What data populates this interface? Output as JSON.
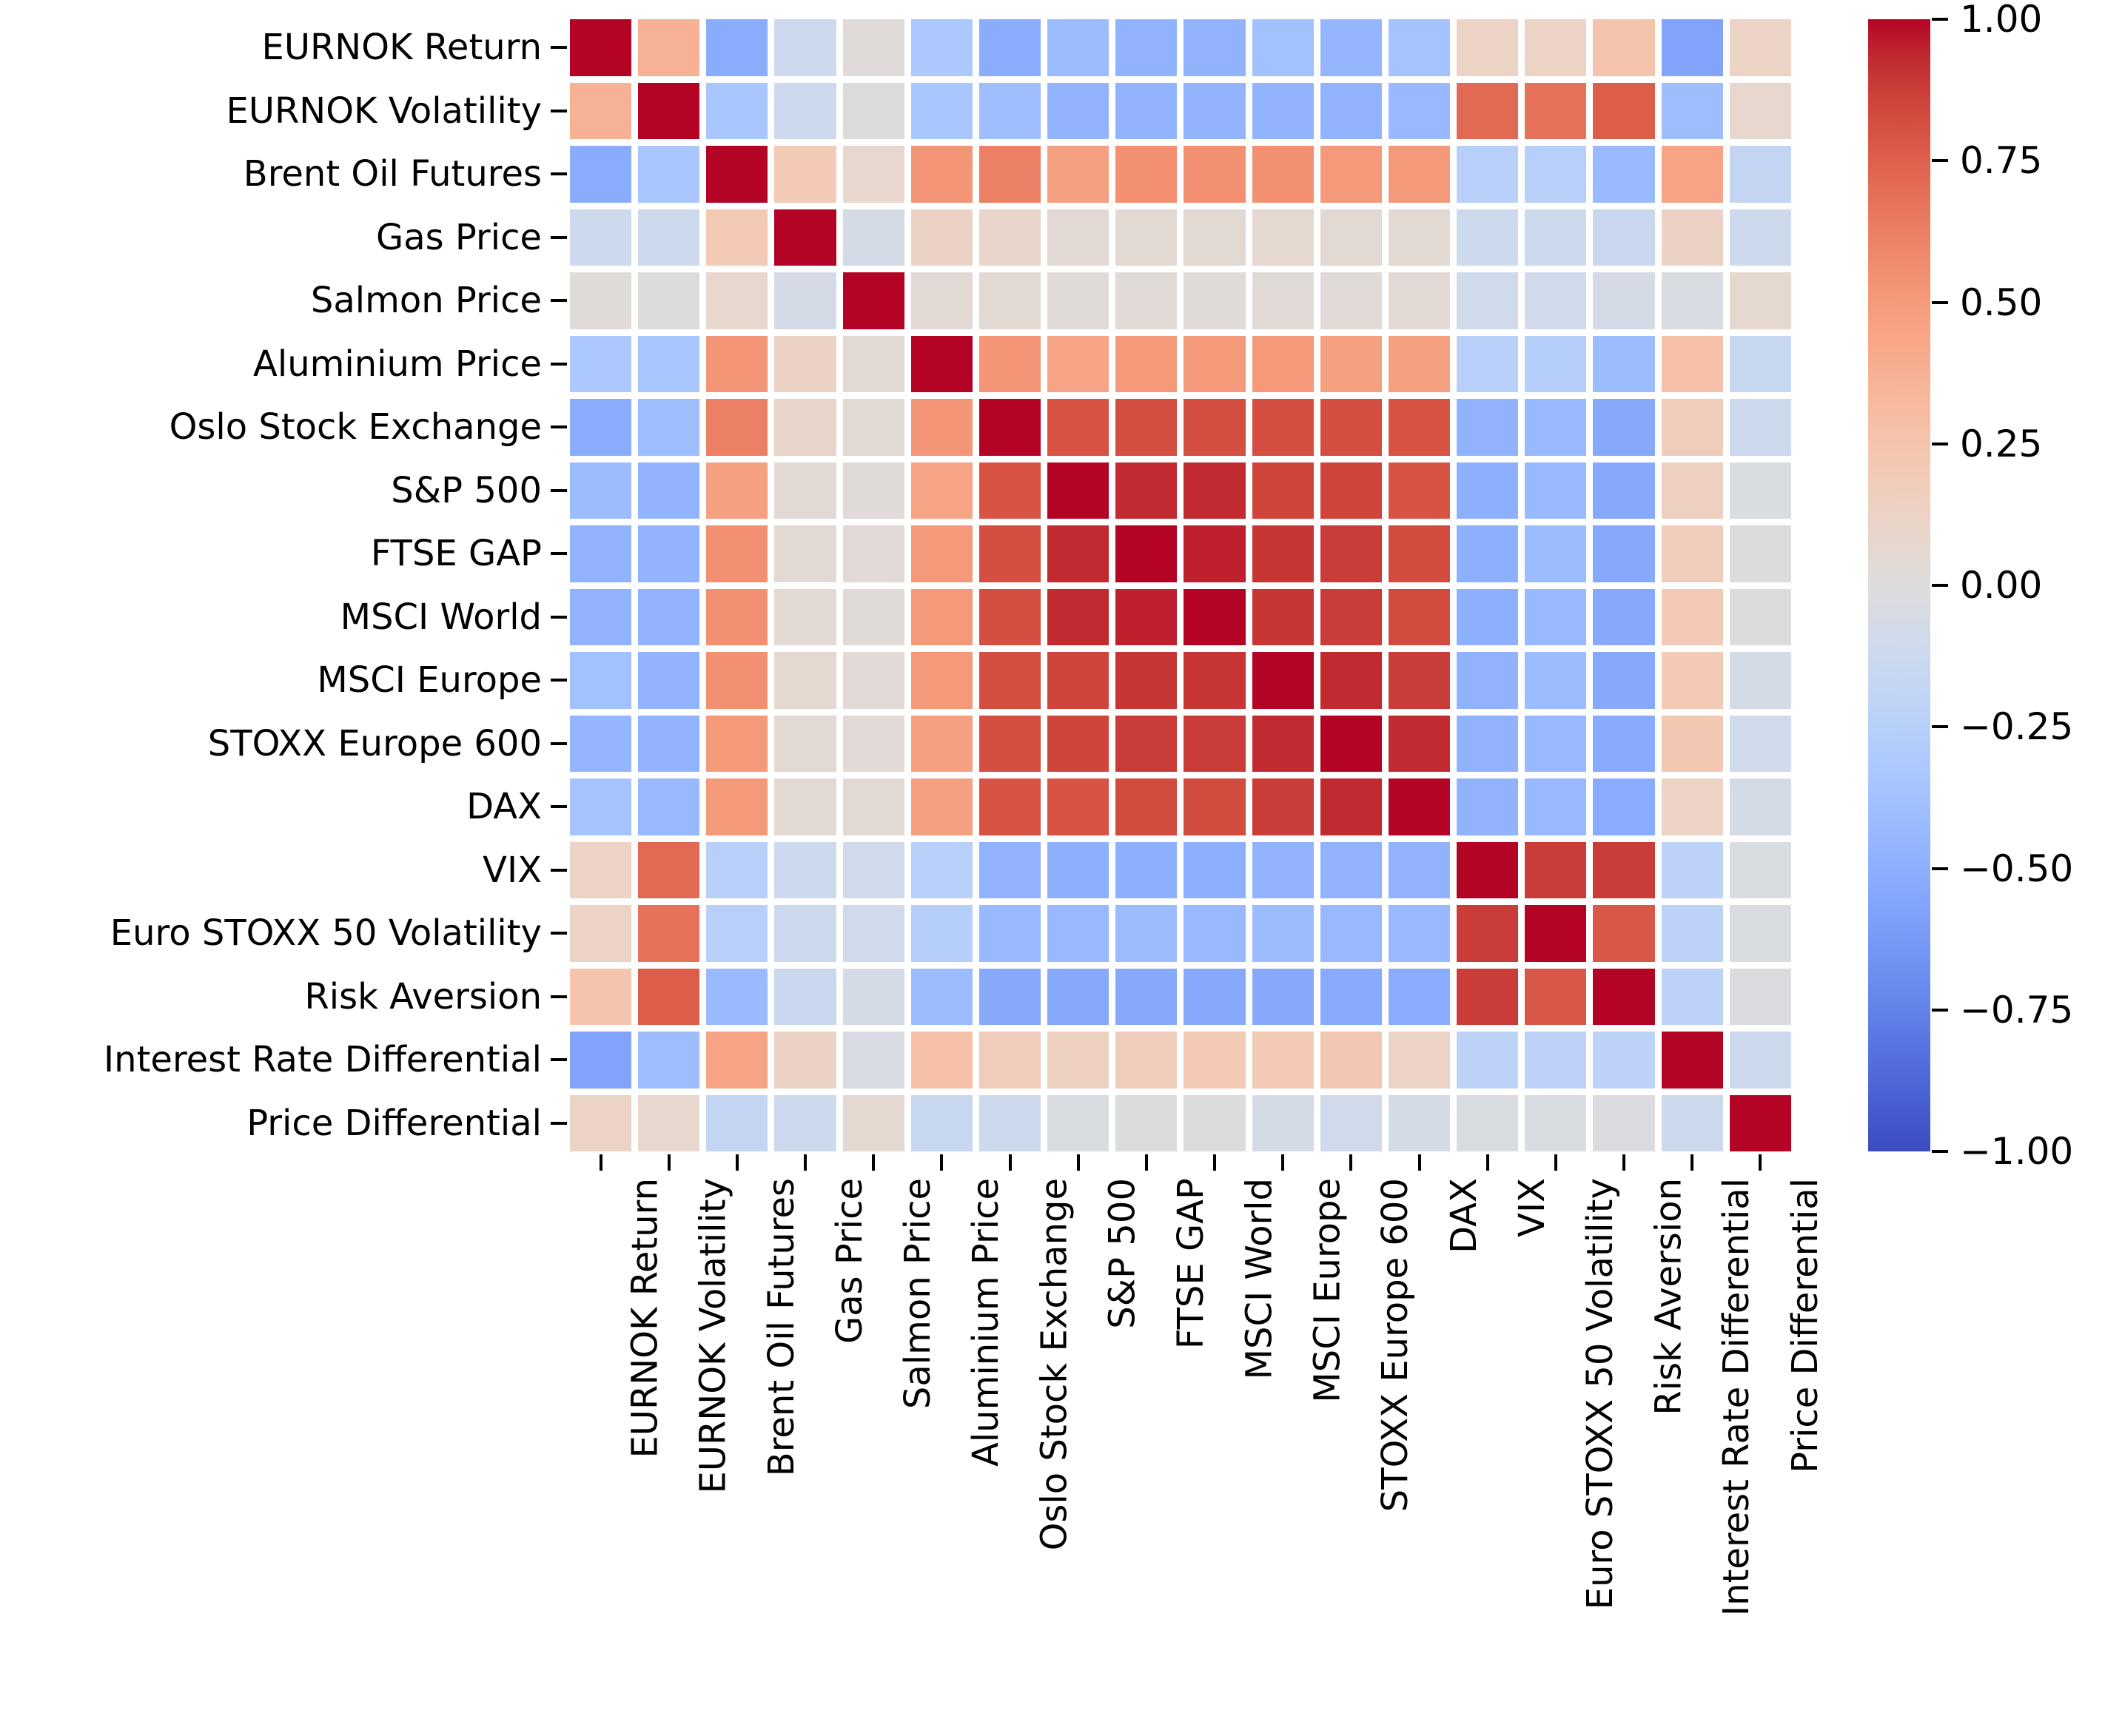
{
  "figure": {
    "background_color": "#ffffff",
    "label_color": "#000000"
  },
  "chart_data": {
    "type": "heatmap",
    "title": "",
    "xlabel": "",
    "ylabel": "",
    "variables": [
      "EURNOK Return",
      "EURNOK Volatility",
      "Brent Oil Futures",
      "Gas Price",
      "Salmon Price",
      "Aluminium Price",
      "Oslo Stock Exchange",
      "S&P 500",
      "FTSE GAP",
      "MSCI World",
      "MSCI Europe",
      "STOXX Europe 600",
      "DAX",
      "VIX",
      "Euro STOXX 50 Volatility",
      "Risk Aversion",
      "Interest Rate Differential",
      "Price Differential"
    ],
    "matrix": [
      [
        1.0,
        0.37,
        -0.52,
        -0.12,
        0.02,
        -0.32,
        -0.52,
        -0.42,
        -0.48,
        -0.48,
        -0.38,
        -0.46,
        -0.37,
        0.12,
        0.12,
        0.25,
        -0.57,
        0.12
      ],
      [
        0.37,
        1.0,
        -0.34,
        -0.12,
        0.0,
        -0.34,
        -0.4,
        -0.47,
        -0.47,
        -0.47,
        -0.47,
        -0.47,
        -0.44,
        0.71,
        0.68,
        0.76,
        -0.41,
        0.08
      ],
      [
        -0.52,
        -0.34,
        1.0,
        0.2,
        0.08,
        0.52,
        0.62,
        0.47,
        0.55,
        0.55,
        0.55,
        0.5,
        0.5,
        -0.25,
        -0.25,
        -0.43,
        0.45,
        -0.18
      ],
      [
        -0.12,
        -0.12,
        0.2,
        1.0,
        -0.06,
        0.13,
        0.1,
        0.04,
        0.05,
        0.05,
        0.06,
        0.05,
        0.05,
        -0.12,
        -0.12,
        -0.14,
        0.13,
        -0.12
      ],
      [
        0.02,
        0.0,
        0.08,
        -0.06,
        1.0,
        0.04,
        0.05,
        0.02,
        0.03,
        0.02,
        0.03,
        0.03,
        0.04,
        -0.1,
        -0.1,
        -0.07,
        -0.04,
        0.06
      ],
      [
        -0.32,
        -0.34,
        0.52,
        0.13,
        0.04,
        1.0,
        0.52,
        0.45,
        0.5,
        0.5,
        0.5,
        0.47,
        0.47,
        -0.25,
        -0.27,
        -0.42,
        0.27,
        -0.15
      ],
      [
        -0.52,
        -0.4,
        0.62,
        0.1,
        0.05,
        0.52,
        1.0,
        0.8,
        0.82,
        0.82,
        0.82,
        0.82,
        0.8,
        -0.48,
        -0.44,
        -0.54,
        0.18,
        -0.12
      ],
      [
        -0.42,
        -0.47,
        0.47,
        0.04,
        0.02,
        0.45,
        0.8,
        1.0,
        0.93,
        0.93,
        0.85,
        0.85,
        0.8,
        -0.5,
        -0.44,
        -0.54,
        0.15,
        -0.03
      ],
      [
        -0.48,
        -0.47,
        0.55,
        0.05,
        0.03,
        0.5,
        0.82,
        0.93,
        1.0,
        0.95,
        0.9,
        0.88,
        0.83,
        -0.5,
        -0.42,
        -0.54,
        0.18,
        0.0
      ],
      [
        -0.48,
        -0.47,
        0.55,
        0.05,
        0.02,
        0.5,
        0.82,
        0.93,
        0.95,
        1.0,
        0.9,
        0.88,
        0.83,
        -0.5,
        -0.44,
        -0.54,
        0.2,
        0.0
      ],
      [
        -0.38,
        -0.47,
        0.55,
        0.06,
        0.03,
        0.5,
        0.82,
        0.85,
        0.9,
        0.9,
        1.0,
        0.93,
        0.88,
        -0.48,
        -0.42,
        -0.54,
        0.2,
        -0.06
      ],
      [
        -0.46,
        -0.47,
        0.5,
        0.05,
        0.03,
        0.47,
        0.82,
        0.85,
        0.88,
        0.88,
        0.93,
        1.0,
        0.93,
        -0.48,
        -0.44,
        -0.53,
        0.22,
        -0.09
      ],
      [
        -0.37,
        -0.44,
        0.5,
        0.05,
        0.04,
        0.47,
        0.8,
        0.8,
        0.83,
        0.83,
        0.88,
        0.93,
        1.0,
        -0.48,
        -0.44,
        -0.52,
        0.12,
        -0.07
      ],
      [
        0.12,
        0.71,
        -0.25,
        -0.12,
        -0.1,
        -0.25,
        -0.48,
        -0.5,
        -0.5,
        -0.5,
        -0.48,
        -0.48,
        -0.48,
        1.0,
        0.88,
        0.88,
        -0.22,
        -0.03
      ],
      [
        0.12,
        0.68,
        -0.25,
        -0.12,
        -0.1,
        -0.27,
        -0.44,
        -0.44,
        -0.42,
        -0.44,
        -0.42,
        -0.44,
        -0.44,
        0.88,
        1.0,
        0.78,
        -0.22,
        -0.03
      ],
      [
        0.25,
        0.76,
        -0.43,
        -0.14,
        -0.07,
        -0.42,
        -0.54,
        -0.54,
        -0.54,
        -0.54,
        -0.54,
        -0.53,
        -0.52,
        0.88,
        0.78,
        1.0,
        -0.22,
        -0.02
      ],
      [
        -0.57,
        -0.41,
        0.45,
        0.13,
        -0.04,
        0.27,
        0.18,
        0.15,
        0.18,
        0.2,
        0.2,
        0.22,
        0.12,
        -0.22,
        -0.22,
        -0.22,
        1.0,
        -0.12
      ],
      [
        0.12,
        0.08,
        -0.18,
        -0.12,
        0.06,
        -0.15,
        -0.12,
        -0.03,
        0.0,
        0.0,
        -0.06,
        -0.09,
        -0.07,
        -0.03,
        -0.03,
        -0.02,
        -0.12,
        1.0
      ]
    ],
    "vmin": -1,
    "vmax": 1,
    "colormap": "coolwarm",
    "colormap_anchors": [
      "#3b4cc0",
      "#445acc",
      "#4d68d7",
      "#5775e1",
      "#6282ea",
      "#6c8ff1",
      "#7799f6",
      "#82a5fb",
      "#8db0fe",
      "#98b9ff",
      "#a3c2ff",
      "#aec9fd",
      "#b8d0f9",
      "#c2d5f4",
      "#ccd9ee",
      "#d5dbe6",
      "#dddcdc",
      "#e5d8d1",
      "#ecd3c5",
      "#f1ccb8",
      "#f5c4ac",
      "#f7bb9f",
      "#f7b093",
      "#f7a687",
      "#f49a7b",
      "#f18d6f",
      "#ec7f63",
      "#e57058",
      "#de604d",
      "#d55042",
      "#cb3e38",
      "#c0282f",
      "#b40426"
    ],
    "cell_gap_color": "#ffffff",
    "grid_on": false,
    "x_tick_rotation": 90,
    "colorbar": {
      "position": "right",
      "ticks": [
        {
          "value": 1.0,
          "label": "1.00"
        },
        {
          "value": 0.75,
          "label": "0.75"
        },
        {
          "value": 0.5,
          "label": "0.50"
        },
        {
          "value": 0.25,
          "label": "0.25"
        },
        {
          "value": 0.0,
          "label": "0.00"
        },
        {
          "value": -0.25,
          "label": "−0.25"
        },
        {
          "value": -0.5,
          "label": "−0.50"
        },
        {
          "value": -0.75,
          "label": "−0.75"
        },
        {
          "value": -1.0,
          "label": "−1.00"
        }
      ]
    }
  }
}
